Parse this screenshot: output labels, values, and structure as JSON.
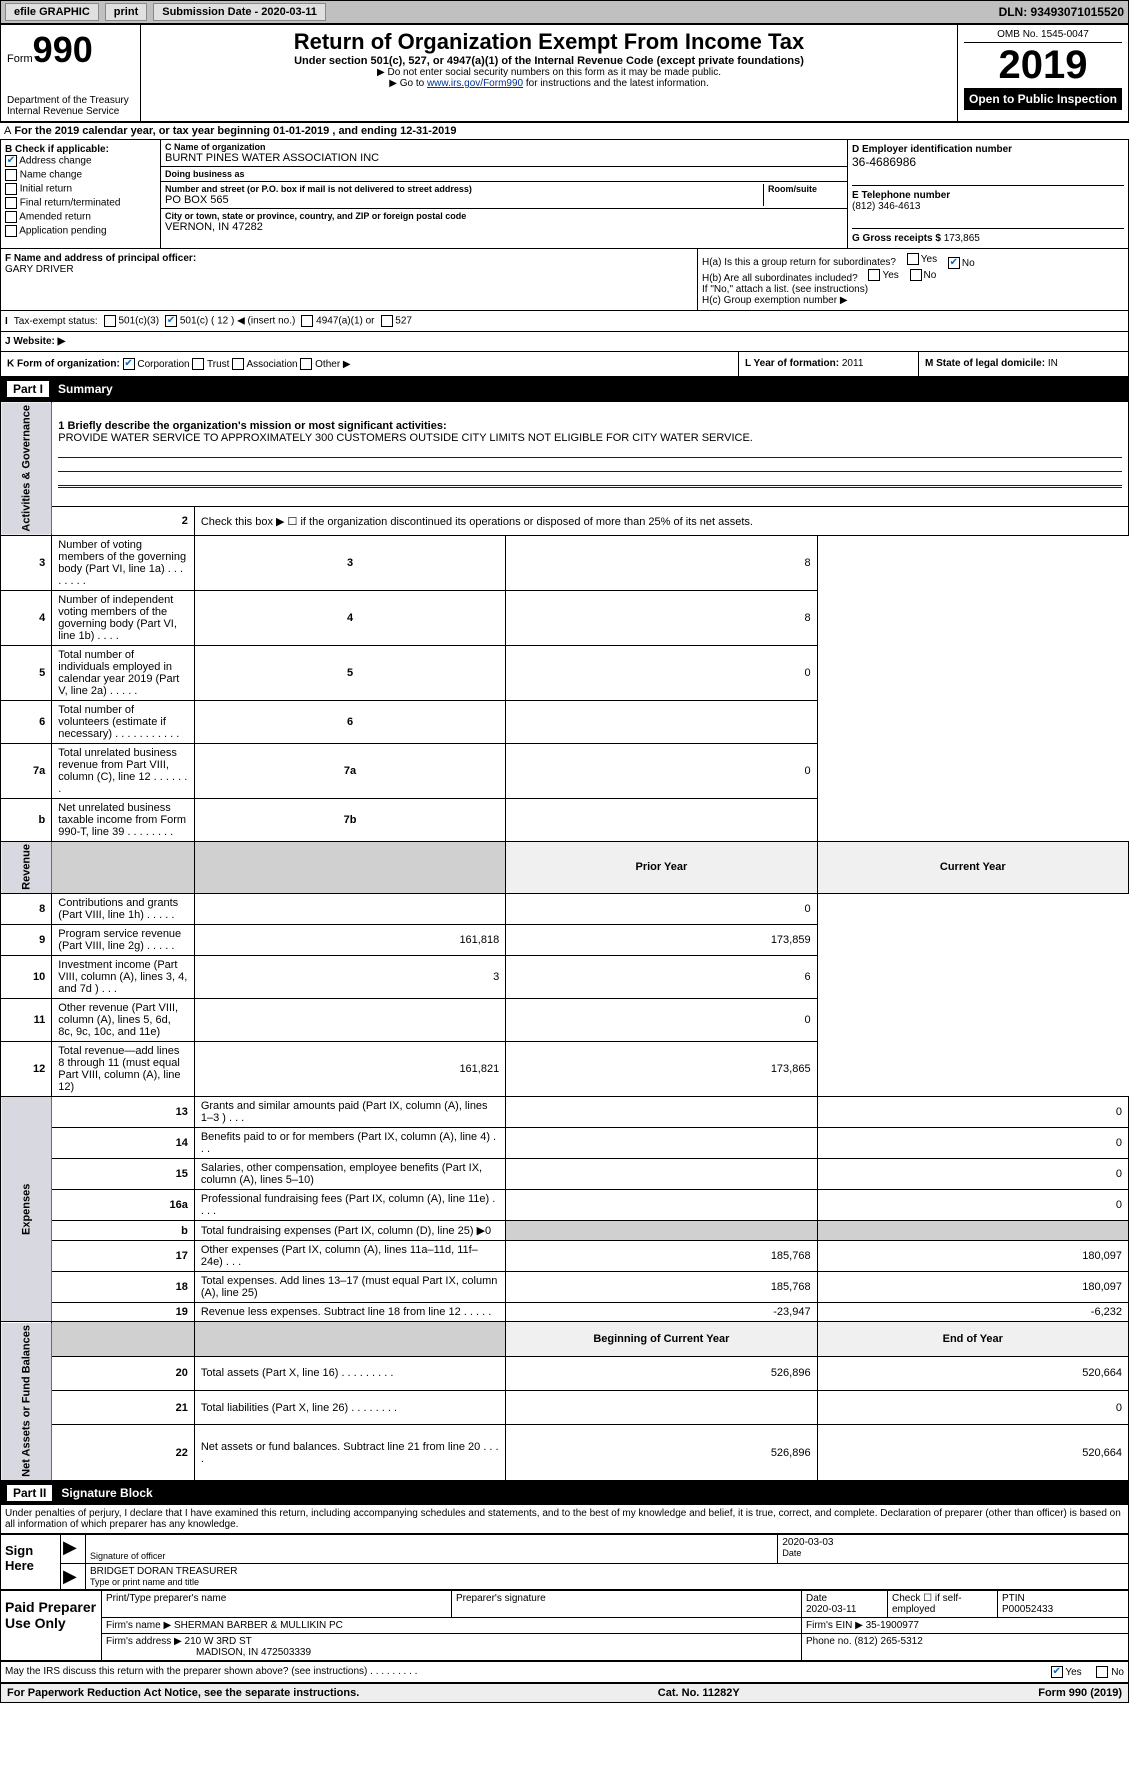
{
  "topbar": {
    "efile": "efile GRAPHIC",
    "print": "print",
    "subdate_label": "Submission Date - 2020-03-11",
    "dln": "DLN: 93493071015520"
  },
  "header": {
    "form_prefix": "Form",
    "form_num": "990",
    "dept": "Department of the Treasury\nInternal Revenue Service",
    "title": "Return of Organization Exempt From Income Tax",
    "sub": "Under section 501(c), 527, or 4947(a)(1) of the Internal Revenue Code (except private foundations)",
    "note1": "▶ Do not enter social security numbers on this form as it may be made public.",
    "note2_pre": "▶ Go to ",
    "note2_link": "www.irs.gov/Form990",
    "note2_post": " for instructions and the latest information.",
    "omb": "OMB No. 1545-0047",
    "year": "2019",
    "open": "Open to Public Inspection"
  },
  "period": "For the 2019 calendar year, or tax year beginning 01-01-2019   , and ending 12-31-2019",
  "section_b": {
    "label": "B Check if applicable:",
    "items": [
      "Address change",
      "Name change",
      "Initial return",
      "Final return/terminated",
      "Amended return",
      "Application pending"
    ],
    "checked_idx": 0
  },
  "section_c": {
    "name_lbl": "C Name of organization",
    "name": "BURNT PINES WATER ASSOCIATION INC",
    "dba_lbl": "Doing business as",
    "dba": "",
    "street_lbl": "Number and street (or P.O. box if mail is not delivered to street address)",
    "room_lbl": "Room/suite",
    "street": "PO BOX 565",
    "city_lbl": "City or town, state or province, country, and ZIP or foreign postal code",
    "city": "VERNON, IN  47282"
  },
  "section_d": {
    "lbl": "D Employer identification number",
    "val": "36-4686986"
  },
  "section_e": {
    "lbl": "E Telephone number",
    "val": "(812) 346-4613"
  },
  "section_g": {
    "lbl": "G Gross receipts $",
    "val": "173,865"
  },
  "section_f": {
    "lbl": "F  Name and address of principal officer:",
    "val": "GARY DRIVER"
  },
  "section_h": {
    "ha": "H(a)  Is this a group return for subordinates?",
    "ha_yes": "Yes",
    "ha_no": "No",
    "hb": "H(b)  Are all subordinates included?",
    "hb_yes": "Yes",
    "hb_no": "No",
    "hb_note": "If \"No,\" attach a list. (see instructions)",
    "hc": "H(c)  Group exemption number ▶"
  },
  "section_i": {
    "lbl": "Tax-exempt status:",
    "opt1": "501(c)(3)",
    "opt2": "501(c) ( 12 ) ◀ (insert no.)",
    "opt3": "4947(a)(1) or",
    "opt4": "527"
  },
  "section_j": {
    "lbl": "J   Website: ▶",
    "val": ""
  },
  "section_k": {
    "lbl": "K Form of organization:",
    "opts": [
      "Corporation",
      "Trust",
      "Association",
      "Other ▶"
    ],
    "checked_idx": 0,
    "l_lbl": "L Year of formation:",
    "l_val": "2011",
    "m_lbl": "M State of legal domicile:",
    "m_val": "IN"
  },
  "part1": {
    "label": "Part I",
    "title": "Summary"
  },
  "summary": {
    "q1_lbl": "1  Briefly describe the organization's mission or most significant activities:",
    "q1_val": "PROVIDE WATER SERVICE TO APPROXIMATELY 300 CUSTOMERS OUTSIDE CITY LIMITS NOT ELIGIBLE FOR CITY WATER SERVICE.",
    "q2": "Check this box ▶ ☐  if the organization discontinued its operations or disposed of more than 25% of its net assets.",
    "rows_ag": [
      {
        "n": "3",
        "d": "Number of voting members of the governing body (Part VI, line 1a)   .    .    .    .    .    .    .    .",
        "box": "3",
        "v": "8"
      },
      {
        "n": "4",
        "d": "Number of independent voting members of the governing body (Part VI, line 1b)   .    .    .    .",
        "box": "4",
        "v": "8"
      },
      {
        "n": "5",
        "d": "Total number of individuals employed in calendar year 2019 (Part V, line 2a)   .    .    .    .    .",
        "box": "5",
        "v": "0"
      },
      {
        "n": "6",
        "d": "Total number of volunteers (estimate if necessary)   .    .    .    .    .    .    .    .    .    .    .",
        "box": "6",
        "v": ""
      },
      {
        "n": "7a",
        "d": "Total unrelated business revenue from Part VIII, column (C), line 12   .    .    .    .    .    .    .",
        "box": "7a",
        "v": "0"
      },
      {
        "n": "b",
        "d": "Net unrelated business taxable income from Form 990-T, line 39   .    .    .    .    .    .    .    .",
        "box": "7b",
        "v": ""
      }
    ],
    "col_prior": "Prior Year",
    "col_curr": "Current Year",
    "rows_rev": [
      {
        "n": "8",
        "d": "Contributions and grants (Part VIII, line 1h)   .    .    .    .    .",
        "p": "",
        "c": "0"
      },
      {
        "n": "9",
        "d": "Program service revenue (Part VIII, line 2g)   .    .    .    .    .",
        "p": "161,818",
        "c": "173,859"
      },
      {
        "n": "10",
        "d": "Investment income (Part VIII, column (A), lines 3, 4, and 7d )   .    .    .",
        "p": "3",
        "c": "6"
      },
      {
        "n": "11",
        "d": "Other revenue (Part VIII, column (A), lines 5, 6d, 8c, 9c, 10c, and 11e)",
        "p": "",
        "c": "0"
      },
      {
        "n": "12",
        "d": "Total revenue—add lines 8 through 11 (must equal Part VIII, column (A), line 12)",
        "p": "161,821",
        "c": "173,865"
      }
    ],
    "rows_exp": [
      {
        "n": "13",
        "d": "Grants and similar amounts paid (Part IX, column (A), lines 1–3 )   .    .    .",
        "p": "",
        "c": "0"
      },
      {
        "n": "14",
        "d": "Benefits paid to or for members (Part IX, column (A), line 4)   .    .    .",
        "p": "",
        "c": "0"
      },
      {
        "n": "15",
        "d": "Salaries, other compensation, employee benefits (Part IX, column (A), lines 5–10)",
        "p": "",
        "c": "0"
      },
      {
        "n": "16a",
        "d": "Professional fundraising fees (Part IX, column (A), line 11e)   .    .    .    .",
        "p": "",
        "c": "0"
      },
      {
        "n": "b",
        "d": "Total fundraising expenses (Part IX, column (D), line 25) ▶0",
        "p": "—",
        "c": "—"
      },
      {
        "n": "17",
        "d": "Other expenses (Part IX, column (A), lines 11a–11d, 11f–24e)   .    .    .",
        "p": "185,768",
        "c": "180,097"
      },
      {
        "n": "18",
        "d": "Total expenses. Add lines 13–17 (must equal Part IX, column (A), line 25)",
        "p": "185,768",
        "c": "180,097"
      },
      {
        "n": "19",
        "d": "Revenue less expenses. Subtract line 18 from line 12   .    .    .    .    .",
        "p": "-23,947",
        "c": "-6,232"
      }
    ],
    "col_beg": "Beginning of Current Year",
    "col_end": "End of Year",
    "rows_na": [
      {
        "n": "20",
        "d": "Total assets (Part X, line 16)   .    .    .    .    .    .    .    .    .",
        "p": "526,896",
        "c": "520,664"
      },
      {
        "n": "21",
        "d": "Total liabilities (Part X, line 26)   .    .    .    .    .    .    .    .",
        "p": "",
        "c": "0"
      },
      {
        "n": "22",
        "d": "Net assets or fund balances. Subtract line 21 from line 20   .    .    .    .",
        "p": "526,896",
        "c": "520,664"
      }
    ],
    "side_ag": "Activities & Governance",
    "side_rev": "Revenue",
    "side_exp": "Expenses",
    "side_na": "Net Assets or Fund Balances"
  },
  "part2": {
    "label": "Part II",
    "title": "Signature Block"
  },
  "perjury": "Under penalties of perjury, I declare that I have examined this return, including accompanying schedules and statements, and to the best of my knowledge and belief, it is true, correct, and complete. Declaration of preparer (other than officer) is based on all information of which preparer has any knowledge.",
  "sign": {
    "side": "Sign Here",
    "sig_lbl": "Signature of officer",
    "date": "2020-03-03",
    "date_lbl": "Date",
    "name": "BRIDGET DORAN  TREASURER",
    "name_lbl": "Type or print name and title"
  },
  "prep": {
    "side": "Paid Preparer Use Only",
    "h_name": "Print/Type preparer's name",
    "h_sig": "Preparer's signature",
    "h_date": "Date",
    "h_check": "Check ☐ if self-employed",
    "h_ptin": "PTIN",
    "date": "2020-03-11",
    "ptin": "P00052433",
    "firm_lbl": "Firm's name    ▶",
    "firm": "SHERMAN BARBER & MULLIKIN PC",
    "ein_lbl": "Firm's EIN ▶",
    "ein": "35-1900977",
    "addr_lbl": "Firm's address ▶",
    "addr1": "210 W 3RD ST",
    "addr2": "MADISON, IN  472503339",
    "phone_lbl": "Phone no.",
    "phone": "(812) 265-5312"
  },
  "discuss": {
    "q": "May the IRS discuss this return with the preparer shown above? (see instructions)   .    .    .    .    .    .    .    .    .",
    "yes": "Yes",
    "no": "No"
  },
  "footer": {
    "left": "For Paperwork Reduction Act Notice, see the separate instructions.",
    "mid": "Cat. No. 11282Y",
    "right": "Form 990 (2019)"
  }
}
